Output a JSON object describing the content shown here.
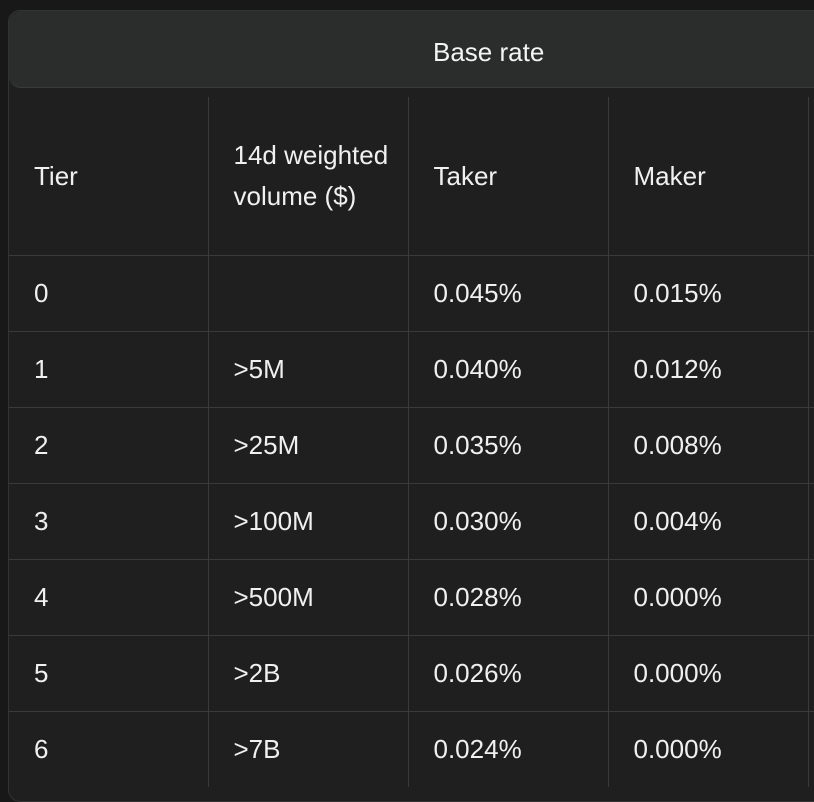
{
  "group_header": "Base rate",
  "columns": [
    "Tier",
    "14d weighted volume ($)",
    "Taker",
    "Maker"
  ],
  "rows": [
    {
      "tier": "0",
      "volume": "",
      "taker": "0.045%",
      "maker": "0.015%"
    },
    {
      "tier": "1",
      "volume": ">5M",
      "taker": "0.040%",
      "maker": "0.012%"
    },
    {
      "tier": "2",
      "volume": ">25M",
      "taker": "0.035%",
      "maker": "0.008%"
    },
    {
      "tier": "3",
      "volume": ">100M",
      "taker": "0.030%",
      "maker": "0.004%"
    },
    {
      "tier": "4",
      "volume": ">500M",
      "taker": "0.028%",
      "maker": "0.000%"
    },
    {
      "tier": "5",
      "volume": ">2B",
      "taker": "0.026%",
      "maker": "0.000%"
    },
    {
      "tier": "6",
      "volume": ">7B",
      "taker": "0.024%",
      "maker": "0.000%"
    }
  ]
}
